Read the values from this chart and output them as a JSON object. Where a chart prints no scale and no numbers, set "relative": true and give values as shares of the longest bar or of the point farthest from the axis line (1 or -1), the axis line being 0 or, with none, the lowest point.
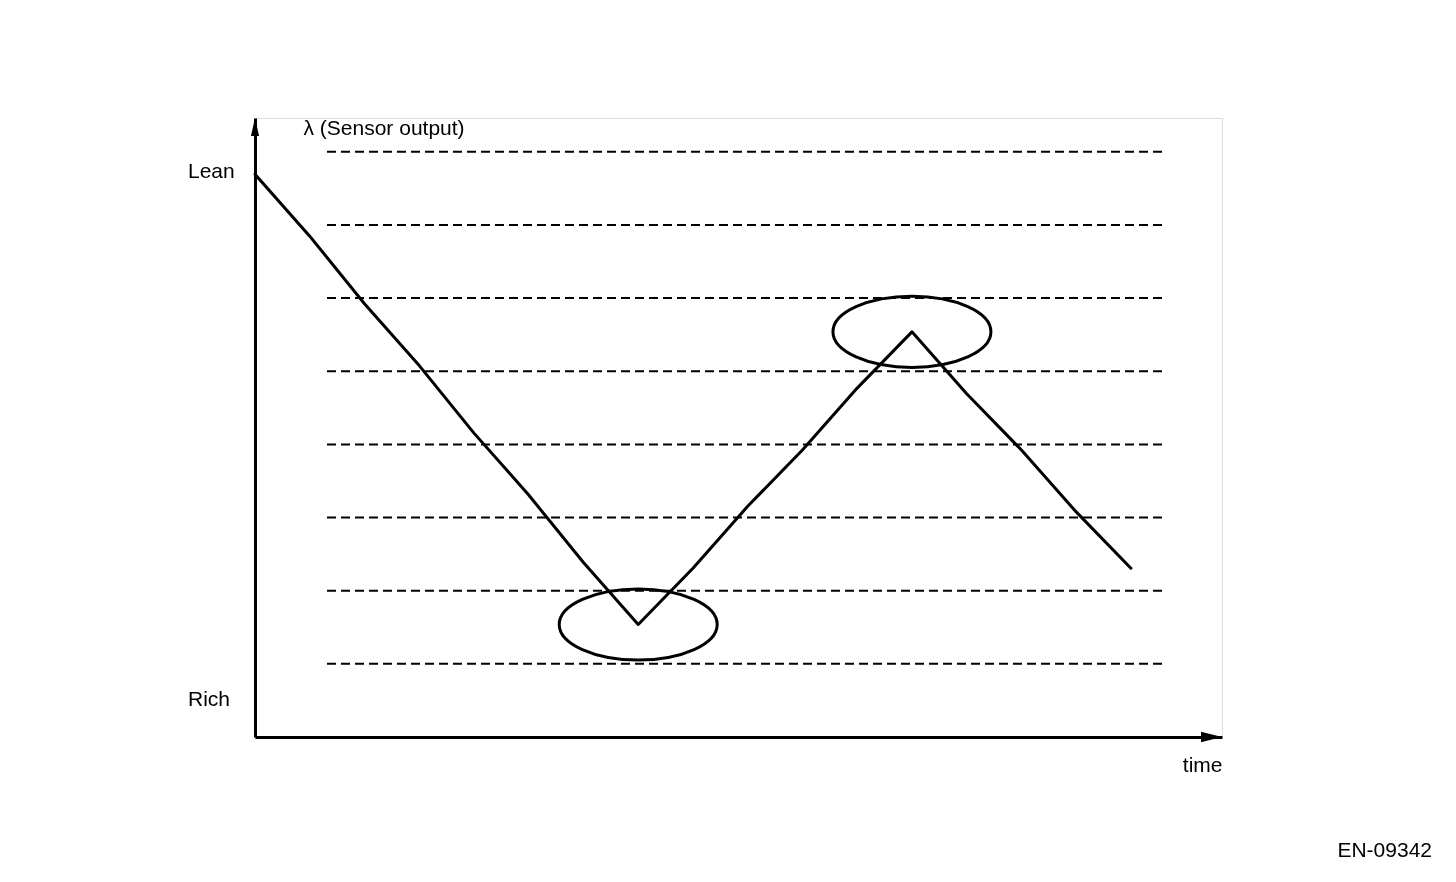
{
  "chart_data": {
    "type": "line",
    "relative": true,
    "xlabel": "time",
    "ylabel": "λ (Sensor output)",
    "categories": [
      null,
      null,
      null,
      null,
      null,
      null,
      null,
      null,
      null,
      null,
      null,
      null,
      null,
      null,
      null,
      null,
      null
    ],
    "series": [
      {
        "color": "#000000",
        "values": [
          1,
          0.89,
          0.77,
          0.66,
          0.54,
          0.43,
          0.31,
          0.2,
          0.3,
          0.41,
          0.51,
          0.62,
          0.72,
          0.61,
          0.51,
          0.4,
          0.3
        ]
      }
    ],
    "ref_lines": [
      {
        "axis": "y",
        "value": 1.04,
        "line_style": "dashed",
        "color": "#000000"
      },
      {
        "axis": "y",
        "value": 0.91,
        "line_style": "dashed",
        "color": "#000000"
      },
      {
        "axis": "y",
        "value": 0.78,
        "line_style": "dashed",
        "color": "#000000"
      },
      {
        "axis": "y",
        "value": 0.65,
        "line_style": "dashed",
        "color": "#000000"
      },
      {
        "axis": "y",
        "value": 0.52,
        "line_style": "dashed",
        "color": "#000000"
      },
      {
        "axis": "y",
        "value": 0.39,
        "line_style": "dashed",
        "color": "#000000"
      },
      {
        "axis": "y",
        "value": 0.26,
        "line_style": "dashed",
        "color": "#000000"
      },
      {
        "axis": "y",
        "value": 0.13,
        "line_style": "dashed",
        "color": "#000000"
      }
    ],
    "annotations": [
      "Lean",
      "Rich",
      "EN-09342"
    ]
  }
}
